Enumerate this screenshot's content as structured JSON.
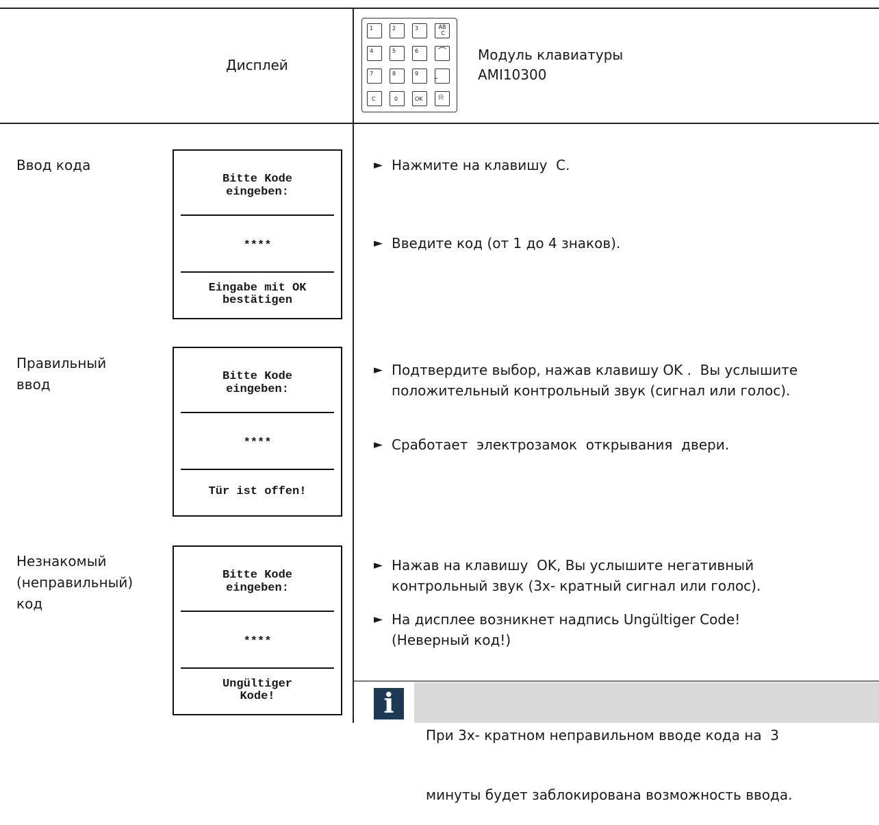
{
  "header": {
    "column_left": "Дисплей",
    "module": [
      "Модуль клавиатуры",
      "AMI10300"
    ],
    "keypad": [
      [
        "1",
        "2",
        "3",
        "AB",
        "C"
      ],
      [
        "4",
        "5",
        "6"
      ],
      [
        "7",
        "8",
        "9"
      ],
      [
        "C",
        "0",
        "OK"
      ]
    ]
  },
  "rows": [
    {
      "label": [
        "Ввод кода"
      ],
      "display": {
        "top": [
          "Bitte Kode",
          "eingeben:"
        ],
        "code": "****",
        "bottom": [
          "Eingabe mit OK",
          "bestätigen"
        ]
      },
      "steps": [
        [
          "Нажмите на клавишу  C."
        ],
        [
          "Введите код (от 1 до 4 знаков)."
        ]
      ]
    },
    {
      "label": [
        "Правильный",
        "ввод"
      ],
      "display": {
        "top": [
          "Bitte Kode",
          "eingeben:"
        ],
        "code": "****",
        "bottom": [
          "Tür ist offen!"
        ]
      },
      "steps": [
        [
          "Подтвердите выбор, нажав клавишу OK .  Вы услышите",
          "положительный контрольный звук (сигнал или голос)."
        ],
        [
          "Сработает  электрозамок  открывания  двери."
        ]
      ]
    },
    {
      "label": [
        "Незнакомый",
        "(неправильный)",
        "код"
      ],
      "display": {
        "top": [
          "Bitte Kode",
          "eingeben:"
        ],
        "code": "****",
        "bottom": [
          "Ungültiger",
          "Kode!"
        ]
      },
      "steps": [
        [
          "Нажав на клавишу  OK, Вы услышите негативный",
          "контрольный звук (3х- кратный сигнал или голос)."
        ],
        [
          "На дисплее возникнет надпись Ungültiger Code!",
          "(Неверный код!)"
        ]
      ]
    }
  ],
  "note": [
    "При 3х- кратном неправильном вводе кода на  3",
    "минуты будет заблокирована возможность ввода."
  ]
}
